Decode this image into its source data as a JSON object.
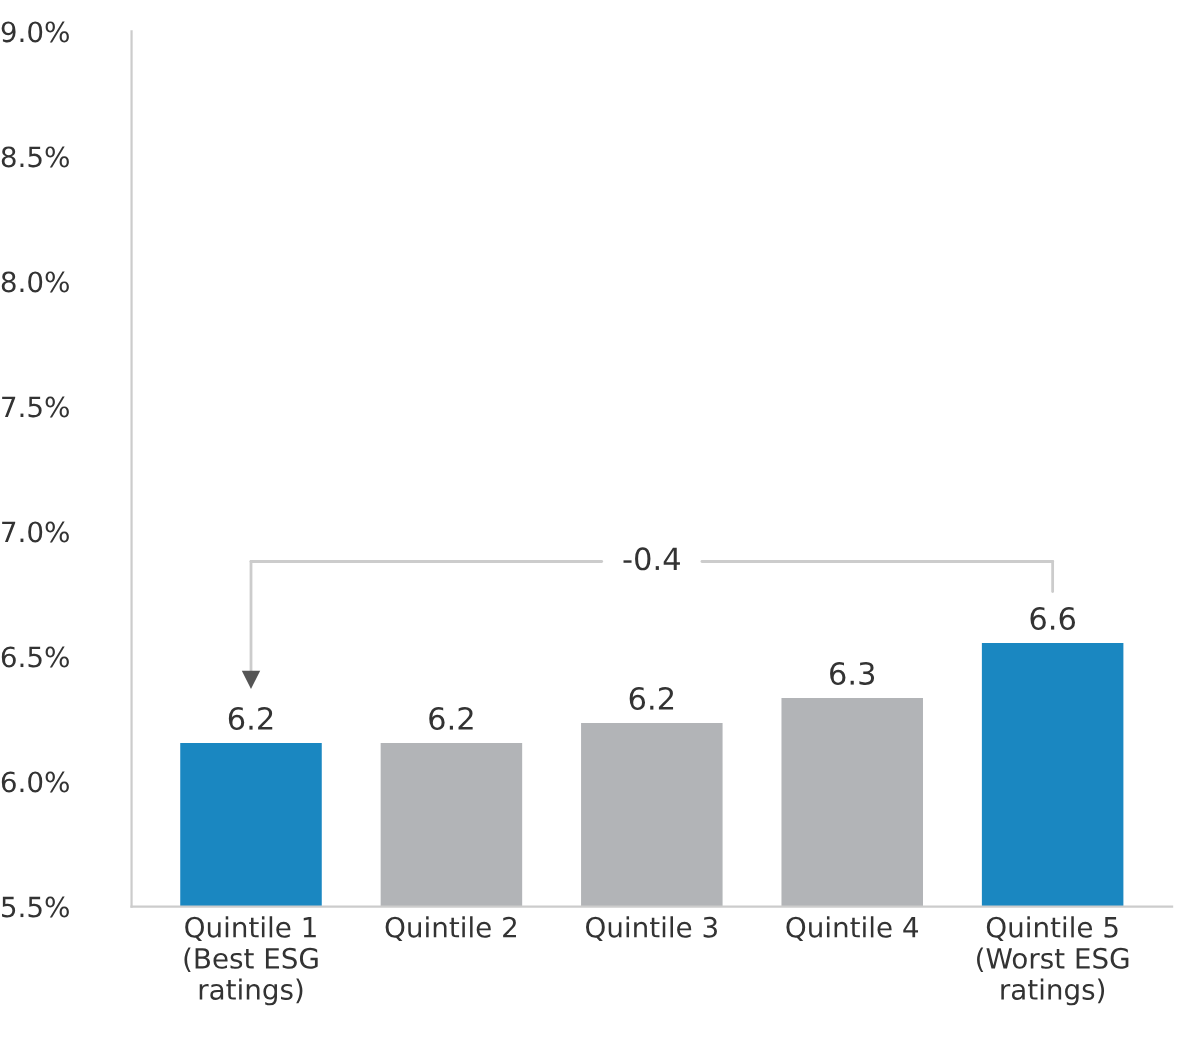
{
  "chart_data": {
    "type": "bar",
    "categories": [
      "Quintile 1\n(Best ESG\nratings)",
      "Quintile 2",
      "Quintile 3",
      "Quintile 4",
      "Quintile 5\n(Worst ESG\nratings)"
    ],
    "values": [
      6.16,
      6.16,
      6.24,
      6.34,
      6.56
    ],
    "value_labels": [
      "6.2",
      "6.2",
      "6.2",
      "6.3",
      "6.6"
    ],
    "colors": [
      "#1a87c1",
      "#b2b4b7",
      "#b2b4b7",
      "#b2b4b7",
      "#1a87c1"
    ],
    "ylim": [
      5.5,
      9.0
    ],
    "yticks": [
      {
        "value": 5.5,
        "label": "5.5%"
      },
      {
        "value": 6.0,
        "label": "6.0%"
      },
      {
        "value": 6.5,
        "label": "6.5%"
      },
      {
        "value": 7.0,
        "label": "7.0%"
      },
      {
        "value": 7.5,
        "label": "7.5%"
      },
      {
        "value": 8.0,
        "label": "8.0%"
      },
      {
        "value": 8.5,
        "label": "8.5%"
      },
      {
        "value": 9.0,
        "label": "9.0%"
      }
    ],
    "annotations": [
      "-0.4"
    ],
    "grid": false
  }
}
